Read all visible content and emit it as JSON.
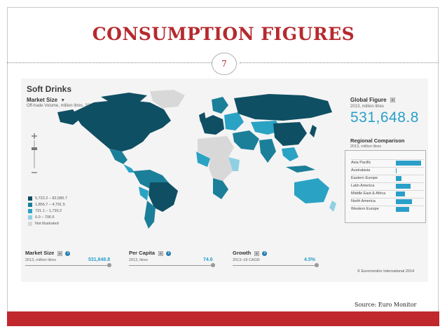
{
  "slide": {
    "title": "CONSUMPTION FIGURES",
    "page_number": "7",
    "source": "Source: Euro Monitor",
    "accent_color": "#c0282e"
  },
  "map_panel": {
    "title": "Soft Drinks",
    "market_size_label": "Market Size",
    "market_size_sub": "Off-trade Volume, million litres, 2013",
    "legend": [
      {
        "label": "5,722.2 – 82,580.7",
        "color": "#0f4f63"
      },
      {
        "label": "1,856.7 – 4,791.5",
        "color": "#1b7f99"
      },
      {
        "label": "731.1 – 1,730.2",
        "color": "#2aa2c4"
      },
      {
        "label": "0.0 – 706.6",
        "color": "#8fd0e3"
      },
      {
        "label": "Not illustrated",
        "color": "#d8d8d8"
      }
    ]
  },
  "global_figure": {
    "label": "Global Figure",
    "sub": "2013, million litres",
    "value": "531,648.8"
  },
  "regional_comparison": {
    "label": "Regional Comparison",
    "sub": "2013, million litres",
    "rows": [
      {
        "label": "Asia Pacific",
        "value": 0.95
      },
      {
        "label": "Australasia",
        "value": 0.03
      },
      {
        "label": "Eastern Europe",
        "value": 0.2
      },
      {
        "label": "Latin America",
        "value": 0.55
      },
      {
        "label": "Middle East & Africa",
        "value": 0.35
      },
      {
        "label": "North America",
        "value": 0.6
      },
      {
        "label": "Western Europe",
        "value": 0.5
      }
    ]
  },
  "metrics": [
    {
      "label": "Market Size",
      "sub": "2013, million litres",
      "value": "531,648.8",
      "position": 1.0
    },
    {
      "label": "Per Capita",
      "sub": "2013, litres",
      "value": "74.6",
      "position": 1.0
    },
    {
      "label": "Growth",
      "sub": "2013–18 CAGR",
      "value": "4.5%",
      "position": 1.0
    }
  ],
  "copyright": "© Euromonitor International 2014"
}
